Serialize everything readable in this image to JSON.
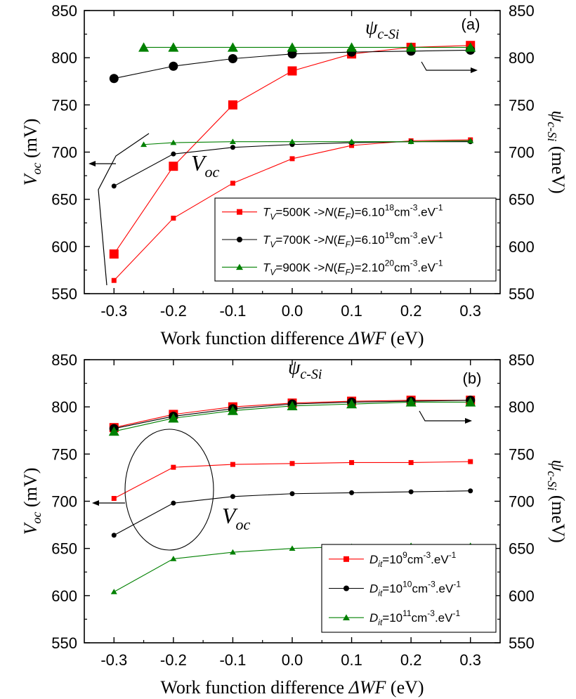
{
  "chart_data": [
    {
      "type": "line",
      "panel_label": "(a)",
      "xlabel_text": "Work function difference ",
      "xlabel_italic": "ΔWF",
      "xlabel_unit": " (eV)",
      "ylabel_left": {
        "main": "V",
        "sub": "oc",
        "unit": " (mV)"
      },
      "ylabel_right": {
        "main": "ψ",
        "sub": "c-Si",
        "unit": " (meV)"
      },
      "xlim": [
        -0.35,
        0.35
      ],
      "ylim": [
        550,
        850
      ],
      "x_ticks": [
        "-0.3",
        "-0.2",
        "-0.1",
        "0.0",
        "0.1",
        "0.2",
        "0.3"
      ],
      "y_ticks": [
        "550",
        "600",
        "650",
        "700",
        "750",
        "800",
        "850"
      ],
      "y2_ticks": [
        "550",
        "600",
        "650",
        "700",
        "750",
        "800",
        "850"
      ],
      "annotations": {
        "psi_main": "ψ",
        "psi_sub": "c-Si",
        "voc_main": "V",
        "voc_sub": "oc"
      },
      "legend_position": "lower-right",
      "series": [
        {
          "name": "T_V=500K -> N(E_F)=6.10^18 cm^-3.eV^-1",
          "legend": {
            "a": "T",
            "as": "V",
            "b": "=500K ->",
            "c": "N",
            "d": "(",
            "e": "E",
            "es": "F",
            "f": ")=6.10",
            "sup1": "18",
            "g": "cm",
            "sup2": "-3",
            "h": ".eV",
            "sup3": "-1"
          },
          "color": "#ff0000",
          "marker": "square",
          "group": "psi",
          "x": [
            -0.3,
            -0.2,
            -0.1,
            0.0,
            0.1,
            0.2,
            0.3
          ],
          "values": [
            592,
            685,
            750,
            786,
            804,
            811,
            813
          ]
        },
        {
          "name": "T_V=700K -> N(E_F)=6.10^19 cm^-3.eV^-1",
          "legend": {
            "a": "T",
            "as": "V",
            "b": "=700K ->",
            "c": "N",
            "d": "(",
            "e": "E",
            "es": "F",
            "f": ")=6.10",
            "sup1": "19",
            "g": "cm",
            "sup2": "-3",
            "h": ".eV",
            "sup3": "-1"
          },
          "color": "#000000",
          "marker": "circle",
          "group": "psi",
          "x": [
            -0.3,
            -0.2,
            -0.1,
            0.0,
            0.1,
            0.2,
            0.3
          ],
          "values": [
            778,
            791,
            799,
            804,
            806,
            807,
            808
          ]
        },
        {
          "name": "T_V=900K -> N(E_F)=2.10^20 cm^-3.eV^-1",
          "legend": {
            "a": "T",
            "as": "V",
            "b": "=900K ->",
            "c": "N",
            "d": "(",
            "e": "E",
            "es": "F",
            "f": ")=2.10",
            "sup1": "20",
            "g": "cm",
            "sup2": "-3",
            "h": ".eV",
            "sup3": "-1"
          },
          "color": "#008000",
          "marker": "triangle",
          "group": "psi",
          "x": [
            -0.25,
            -0.2,
            -0.1,
            0.0,
            0.1,
            0.2,
            0.3
          ],
          "values": [
            811,
            811,
            811,
            811,
            811,
            811,
            811
          ]
        },
        {
          "color": "#ff0000",
          "marker": "square",
          "group": "voc",
          "x": [
            -0.3,
            -0.2,
            -0.1,
            0.0,
            0.1,
            0.2,
            0.3
          ],
          "values": [
            564,
            630,
            667,
            693,
            707,
            712,
            713
          ]
        },
        {
          "color": "#000000",
          "marker": "circle",
          "group": "voc",
          "x": [
            -0.3,
            -0.2,
            -0.1,
            0.0,
            0.1,
            0.2,
            0.3
          ],
          "values": [
            664,
            698,
            705,
            708,
            710,
            711,
            711
          ]
        },
        {
          "color": "#008000",
          "marker": "triangle",
          "group": "voc",
          "x": [
            -0.25,
            -0.2,
            -0.1,
            0.0,
            0.1,
            0.2,
            0.3
          ],
          "values": [
            708,
            710,
            711,
            711,
            711,
            711,
            712
          ]
        }
      ]
    },
    {
      "type": "line",
      "panel_label": "(b)",
      "xlabel_text": "Work function difference ",
      "xlabel_italic": "ΔWF",
      "xlabel_unit": " (eV)",
      "ylabel_left": {
        "main": "V",
        "sub": "oc",
        "unit": " (mV)"
      },
      "ylabel_right": {
        "main": "ψ",
        "sub": "c-Si",
        "unit": " (meV)"
      },
      "xlim": [
        -0.35,
        0.35
      ],
      "ylim": [
        550,
        850
      ],
      "x_ticks": [
        "-0.3",
        "-0.2",
        "-0.1",
        "0.0",
        "0.1",
        "0.2",
        "0.3"
      ],
      "y_ticks": [
        "550",
        "600",
        "650",
        "700",
        "750",
        "800",
        "850"
      ],
      "y2_ticks": [
        "550",
        "600",
        "650",
        "700",
        "750",
        "800",
        "850"
      ],
      "annotations": {
        "psi_main": "ψ",
        "psi_sub": "c-Si",
        "voc_main": "V",
        "voc_sub": "oc"
      },
      "legend_position": "lower-right",
      "series": [
        {
          "name": "D_it=10^9 cm^-3.eV^-1",
          "legend": {
            "a": "D",
            "as": "it",
            "b": "=10",
            "sup1": "9",
            "g": "cm",
            "sup2": "-3",
            "h": ".eV",
            "sup3": "-1"
          },
          "color": "#ff0000",
          "marker": "square",
          "group": "psi",
          "x": [
            -0.3,
            -0.2,
            -0.1,
            0.0,
            0.1,
            0.2,
            0.3
          ],
          "values": [
            778,
            792,
            800,
            804,
            806,
            807,
            807
          ]
        },
        {
          "name": "D_it=10^10 cm^-3.eV^-1",
          "legend": {
            "a": "D",
            "as": "it",
            "b": "=10",
            "sup1": "10",
            "g": "cm",
            "sup2": "-3",
            "h": ".eV",
            "sup3": "-1"
          },
          "color": "#000000",
          "marker": "circle",
          "group": "psi",
          "x": [
            -0.3,
            -0.2,
            -0.1,
            0.0,
            0.1,
            0.2,
            0.3
          ],
          "values": [
            777,
            790,
            798,
            803,
            805,
            806,
            807
          ]
        },
        {
          "name": "D_it=10^11 cm^-3.eV^-1",
          "legend": {
            "a": "D",
            "as": "it",
            "b": "=10",
            "sup1": "11",
            "g": "cm",
            "sup2": "-3",
            "h": ".eV",
            "sup3": "-1"
          },
          "color": "#008000",
          "marker": "triangle",
          "group": "psi",
          "x": [
            -0.3,
            -0.2,
            -0.1,
            0.0,
            0.1,
            0.2,
            0.3
          ],
          "values": [
            774,
            788,
            796,
            801,
            803,
            805,
            805
          ]
        },
        {
          "color": "#ff0000",
          "marker": "square",
          "group": "voc",
          "x": [
            -0.3,
            -0.2,
            -0.1,
            0.0,
            0.1,
            0.2,
            0.3
          ],
          "values": [
            703,
            736,
            739,
            740,
            741,
            741,
            742
          ]
        },
        {
          "color": "#000000",
          "marker": "circle",
          "group": "voc",
          "x": [
            -0.3,
            -0.2,
            -0.1,
            0.0,
            0.1,
            0.2,
            0.3
          ],
          "values": [
            664,
            698,
            705,
            708,
            709,
            710,
            711
          ]
        },
        {
          "color": "#008000",
          "marker": "triangle",
          "group": "voc",
          "x": [
            -0.3,
            -0.2,
            -0.1,
            0.0,
            0.1,
            0.2,
            0.3
          ],
          "values": [
            604,
            639,
            646,
            650,
            652,
            653,
            653
          ]
        }
      ]
    }
  ]
}
